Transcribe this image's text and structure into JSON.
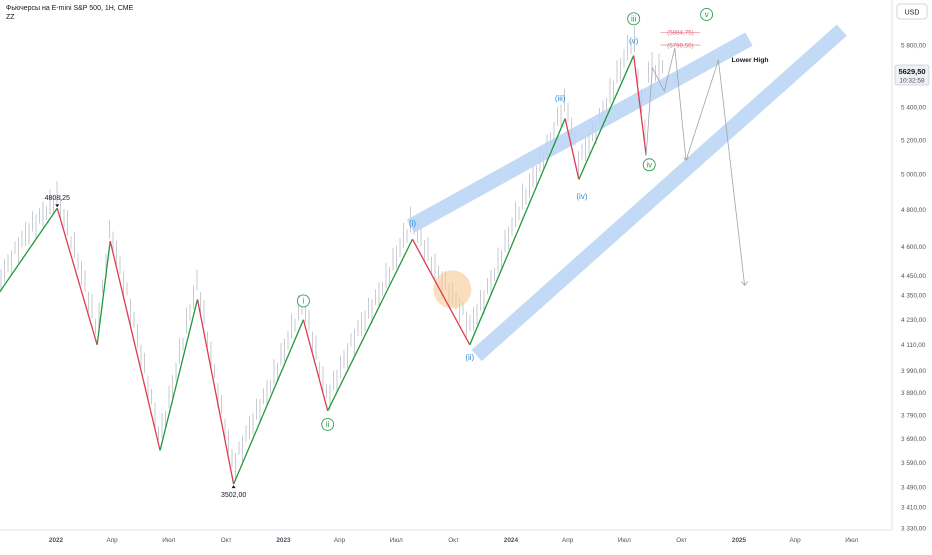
{
  "header": {
    "title": "Фьючерсы на E-mini S&P 500, 1H, CME",
    "indicator": "ZZ"
  },
  "currency_button": "USD",
  "price_badge": {
    "price": "5629,50",
    "countdown": "10:32:58"
  },
  "colors": {
    "up_leg": "#1f9a3b",
    "down_leg": "#e03a4f",
    "channel": "#b8d4f5",
    "wave_blue": "#2e8ad8",
    "wave_green": "#2f9e52",
    "target_red": "#e06a7a",
    "highlight": "#f5c992"
  },
  "chart_data": {
    "type": "line",
    "y_scale": "log",
    "x_labels": [
      "2022",
      "Апр",
      "Июл",
      "Окт",
      "2023",
      "Апр",
      "Июл",
      "Окт",
      "2024",
      "Апр",
      "Июл",
      "Окт",
      "2025",
      "Апр",
      "Июл"
    ],
    "y_ticks": [
      "5 800,00",
      "5 600,00",
      "5 400,00",
      "5 200,00",
      "5 000,00",
      "4 800,00",
      "4 600,00",
      "4 450,00",
      "4 350,00",
      "4 230,00",
      "4 110,00",
      "3 990,00",
      "3 890,00",
      "3 790,00",
      "3 690,00",
      "3 590,00",
      "3 490,00",
      "3 410,00",
      "3 330,00"
    ],
    "zigzag": [
      {
        "date": "2021-09-20",
        "value": 4310
      },
      {
        "date": "2022-01-03",
        "value": 4808.25
      },
      {
        "date": "2022-03-08",
        "value": 4110
      },
      {
        "date": "2022-03-29",
        "value": 4630
      },
      {
        "date": "2022-06-17",
        "value": 3640
      },
      {
        "date": "2022-08-16",
        "value": 4330
      },
      {
        "date": "2022-10-13",
        "value": 3502
      },
      {
        "date": "2023-02-02",
        "value": 4230
      },
      {
        "date": "2023-03-13",
        "value": 3810
      },
      {
        "date": "2023-07-27",
        "value": 4640
      },
      {
        "date": "2023-10-27",
        "value": 4110
      },
      {
        "date": "2024-03-28",
        "value": 5330
      },
      {
        "date": "2024-04-19",
        "value": 4970
      },
      {
        "date": "2024-07-16",
        "value": 5730
      },
      {
        "date": "2024-08-05",
        "value": 5110
      }
    ],
    "projection": [
      {
        "date": "2024-08-05",
        "value": 5110
      },
      {
        "date": "2024-08-15",
        "value": 5650
      },
      {
        "date": "2024-09-03",
        "value": 5500
      },
      {
        "date": "2024-09-20",
        "value": 5780
      },
      {
        "date": "2024-10-08",
        "value": 5080
      },
      {
        "date": "2024-11-29",
        "value": 5700
      }
    ],
    "projection_drop": [
      {
        "date": "2024-11-29",
        "value": 5700
      },
      {
        "date": "2025-01-10",
        "value": 4400
      }
    ],
    "extreme_labels": [
      {
        "text": "4808,25",
        "date": "2022-01-03",
        "value": 4808.25,
        "pos": "above"
      },
      {
        "text": "3502,00",
        "date": "2022-10-13",
        "value": 3502,
        "pos": "below"
      }
    ],
    "targets": [
      {
        "text": "(5884,75)",
        "value": 5884.75,
        "from": "2024-08-28",
        "to": "2024-10-31"
      },
      {
        "text": "(5799,50)",
        "value": 5799.5,
        "from": "2024-08-28",
        "to": "2024-10-31"
      }
    ],
    "waves": [
      {
        "text": "(i)",
        "date": "2023-07-27",
        "value": 4710,
        "color": "blue",
        "circled": false
      },
      {
        "text": "(ii)",
        "date": "2023-10-27",
        "value": 4040,
        "color": "blue",
        "circled": false
      },
      {
        "text": "(iii)",
        "date": "2024-03-20",
        "value": 5440,
        "color": "blue",
        "circled": false
      },
      {
        "text": "(iv)",
        "date": "2024-04-24",
        "value": 4860,
        "color": "blue",
        "circled": false
      },
      {
        "text": "(v)",
        "date": "2024-07-16",
        "value": 5810,
        "color": "blue",
        "circled": false
      },
      {
        "text": "iii",
        "date": "2024-07-16",
        "value": 5960,
        "color": "green",
        "circled": true
      },
      {
        "text": "iv",
        "date": "2024-08-10",
        "value": 5040,
        "color": "green",
        "circled": true
      },
      {
        "text": "v",
        "date": "2024-11-10",
        "value": 5990,
        "color": "green",
        "circled": true
      },
      {
        "text": "i",
        "date": "2023-02-02",
        "value": 4310,
        "color": "green",
        "circled": true
      },
      {
        "text": "ii",
        "date": "2023-03-13",
        "value": 3740,
        "color": "green",
        "circled": true
      }
    ],
    "annotation": {
      "text": "Lower High",
      "date": "2024-12-20",
      "value": 5700
    },
    "channel": {
      "upper": [
        {
          "date": "2023-07-24",
          "value": 4710
        },
        {
          "date": "2025-01-17",
          "value": 5840
        }
      ],
      "lower": [
        {
          "date": "2023-11-07",
          "value": 4060
        },
        {
          "date": "2025-06-15",
          "value": 5900
        }
      ]
    },
    "highlight_zone": {
      "date": "2023-09-29",
      "value": 4380
    }
  }
}
